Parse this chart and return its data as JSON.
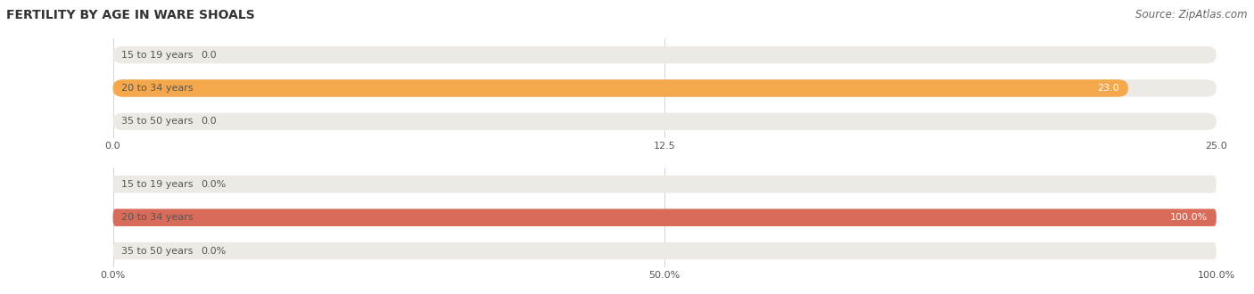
{
  "title": "FERTILITY BY AGE IN WARE SHOALS",
  "source": "Source: ZipAtlas.com",
  "chart1": {
    "categories": [
      "15 to 19 years",
      "20 to 34 years",
      "35 to 50 years"
    ],
    "values": [
      0.0,
      23.0,
      0.0
    ],
    "xlim": [
      0,
      25.0
    ],
    "xticks": [
      0.0,
      12.5,
      25.0
    ],
    "xtick_labels": [
      "0.0",
      "12.5",
      "25.0"
    ],
    "bar_color": "#F5A84B",
    "bar_bg_color": "#EDEAE6",
    "label_color": "#555555",
    "value_color": "#555555",
    "value_inside_color": "#FFFFFF"
  },
  "chart2": {
    "categories": [
      "15 to 19 years",
      "20 to 34 years",
      "35 to 50 years"
    ],
    "values": [
      0.0,
      100.0,
      0.0
    ],
    "xlim": [
      0,
      100.0
    ],
    "xticks": [
      0.0,
      50.0,
      100.0
    ],
    "xtick_labels": [
      "0.0%",
      "50.0%",
      "100.0%"
    ],
    "bar_color": "#D96B5A",
    "bar_bg_color": "#EDEAE6",
    "label_color": "#555555",
    "value_color": "#555555",
    "value_inside_color": "#FFFFFF"
  },
  "title_fontsize": 10,
  "source_fontsize": 8.5,
  "label_fontsize": 8,
  "value_fontsize": 8,
  "tick_fontsize": 8,
  "bg_color": "#FFFFFF",
  "bar_height": 0.52
}
